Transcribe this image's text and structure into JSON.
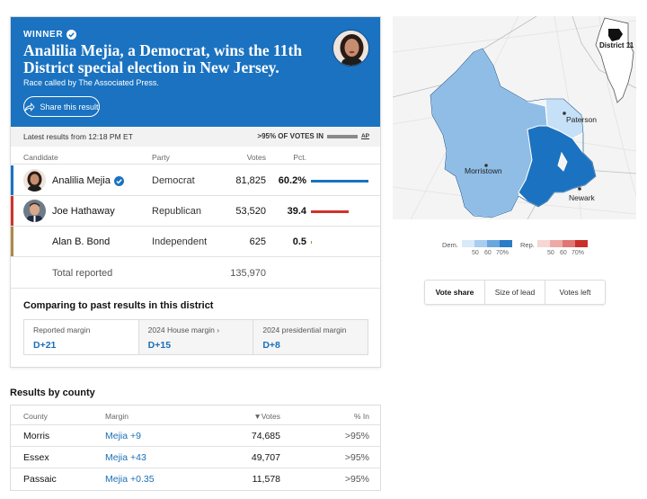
{
  "result": {
    "winner_label": "WINNER",
    "headline": "Analilia Mejia, a Democrat, wins the 11th District special election in New Jersey.",
    "called_by": "Race called by The Associated Press.",
    "share_label": "Share this result",
    "latest_results": "Latest results from 12:18 PM ET",
    "votes_in": ">95% OF VOTES IN",
    "source": "AP",
    "columns": {
      "candidate": "Candidate",
      "party": "Party",
      "votes": "Votes",
      "pct": "Pct."
    },
    "candidates": [
      {
        "name": "Analilia Mejia",
        "party": "Democrat",
        "votes": "81,825",
        "pct": "60.2%",
        "share": 0.602,
        "color": "#1a72c0",
        "winner": true
      },
      {
        "name": "Joe Hathaway",
        "party": "Republican",
        "votes": "53,520",
        "pct": "39.4",
        "share": 0.394,
        "color": "#d0322d",
        "winner": false
      },
      {
        "name": "Alan B. Bond",
        "party": "Independent",
        "votes": "625",
        "pct": "0.5",
        "share": 0.005,
        "color": "#a88a4a",
        "winner": false
      }
    ],
    "total_label": "Total reported",
    "total_votes": "135,970"
  },
  "comparison": {
    "title": "Comparing to past results in this district",
    "cells": [
      {
        "label": "Reported margin",
        "value": "D+21"
      },
      {
        "label": "2024 House margin ›",
        "value": "D+15"
      },
      {
        "label": "2024 presidential margin",
        "value": "D+8"
      }
    ]
  },
  "county": {
    "title": "Results by county",
    "columns": {
      "county": "County",
      "margin": "Margin",
      "votes": "▼Votes",
      "pct_in": "% In"
    },
    "rows": [
      {
        "county": "Morris",
        "margin": "Mejia +9",
        "votes": "74,685",
        "pct_in": ">95%"
      },
      {
        "county": "Essex",
        "margin": "Mejia +43",
        "votes": "49,707",
        "pct_in": ">95%"
      },
      {
        "county": "Passaic",
        "margin": "Mejia +0.35",
        "votes": "11,578",
        "pct_in": ">95%"
      }
    ]
  },
  "map": {
    "labels": {
      "paterson": "Paterson",
      "morristown": "Morristown",
      "newark": "Newark",
      "inset": "District 11"
    },
    "colors": {
      "light": "#c6e0f7",
      "mid": "#8fbde6",
      "dark": "#1a72c0",
      "darkest": "#0f5fa8"
    }
  },
  "legend": {
    "dem_label": "Dem.",
    "rep_label": "Rep.",
    "dem_ticks": [
      "50",
      "60",
      "70%"
    ],
    "rep_ticks": [
      "50",
      "60",
      "70%"
    ],
    "dem_colors": [
      "#d8e9f8",
      "#a9cdef",
      "#6aa6de",
      "#2a7dc6"
    ],
    "rep_colors": [
      "#f7d6d4",
      "#eea9a6",
      "#e17772",
      "#c9302c"
    ]
  },
  "map_toggle": {
    "options": [
      "Vote share",
      "Size of lead",
      "Votes left"
    ],
    "selected": "Vote share"
  }
}
